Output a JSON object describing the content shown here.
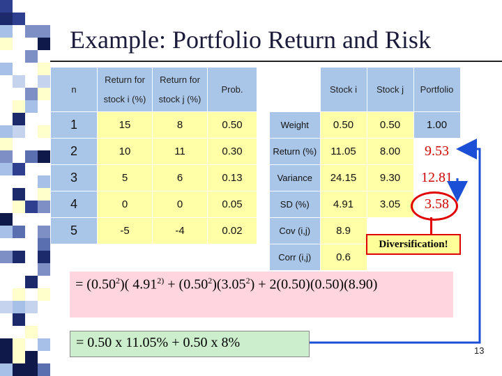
{
  "title": "Example: Portfolio Return and Risk",
  "left_table": {
    "headers": [
      "n",
      "Return for stock i (%)",
      "Return for stock j (%)",
      "Prob."
    ],
    "header_lines": [
      [
        "n"
      ],
      [
        "Return for",
        "stock i (%)"
      ],
      [
        "Return for",
        "stock j (%)"
      ],
      [
        "Prob."
      ]
    ],
    "rows": [
      [
        "1",
        "15",
        "8",
        "0.50"
      ],
      [
        "2",
        "10",
        "11",
        "0.30"
      ],
      [
        "3",
        "5",
        "6",
        "0.13"
      ],
      [
        "4",
        "0",
        "0",
        "0.05"
      ],
      [
        "5",
        "-5",
        "-4",
        "0.02"
      ]
    ]
  },
  "right_table": {
    "headers": [
      "",
      "Stock i",
      "Stock j",
      "Portfolio"
    ],
    "rows": [
      {
        "label": "Weight",
        "i": "0.50",
        "j": "0.50",
        "p": "1.00"
      },
      {
        "label": "Return (%)",
        "i": "11.05",
        "j": "8.00",
        "p": "9.53"
      },
      {
        "label": "Variance",
        "i": "24.15",
        "j": "9.30",
        "p": "12.81"
      },
      {
        "label": "SD (%)",
        "i": "4.91",
        "j": "3.05",
        "p": "3.58"
      }
    ],
    "cov_label": "Cov (i,j)",
    "cov_value": "8.9",
    "corr_label": "Corr (i,j)",
    "corr_value": "0.6"
  },
  "callout": "Diversification!",
  "formula_variance": {
    "p1": "= (0.50",
    "s1": "2",
    "p2": ")( 4.91",
    "s2": "2)",
    "p3": " + (0.50",
    "s3": "2",
    "p4": ")(3.05",
    "s4": "2",
    "p5": ") + 2(0.50)(0.50)(8.90)"
  },
  "formula_return": "= 0.50 x 11.05% + 0.50 x 8%",
  "page_number": "13",
  "colors": {
    "table_blue": "#a9c6e8",
    "table_yellow": "#ffffa8",
    "accent_red": "#e00000",
    "arrow_blue": "#1a4fd6"
  }
}
